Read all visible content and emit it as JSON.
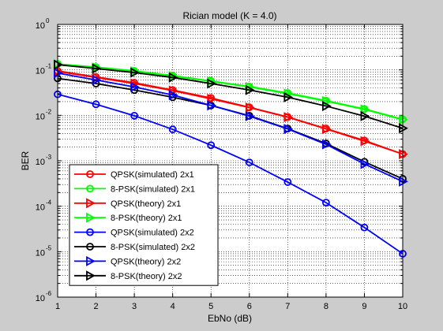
{
  "chart_data": {
    "type": "line",
    "title": "Rician model (K = 4.0)",
    "xlabel": "EbNo (dB)",
    "ylabel": "BER",
    "y_scale": "log",
    "xlim": [
      1,
      10
    ],
    "ylim": [
      1e-06,
      1
    ],
    "x_ticks": [
      "1",
      "2",
      "3",
      "4",
      "5",
      "6",
      "7",
      "8",
      "9",
      "10"
    ],
    "y_ticks": [
      {
        "base": "10",
        "exp": "0"
      },
      {
        "base": "10",
        "exp": "-1"
      },
      {
        "base": "10",
        "exp": "-2"
      },
      {
        "base": "10",
        "exp": "-3"
      },
      {
        "base": "10",
        "exp": "-4"
      },
      {
        "base": "10",
        "exp": "-5"
      },
      {
        "base": "10",
        "exp": "-6"
      }
    ],
    "grid": "dotted, major and minor",
    "legend_position": "bottom-left",
    "x": [
      1,
      2,
      3,
      4,
      5,
      6,
      7,
      8,
      9,
      10
    ],
    "series": [
      {
        "name": "QPSK(simulated) 2x1",
        "color": "#ff0000",
        "marker": "circle",
        "values": [
          0.095,
          0.07,
          0.052,
          0.036,
          0.024,
          0.015,
          0.0092,
          0.0051,
          0.0028,
          0.0014
        ]
      },
      {
        "name": "8-PSK(simulated) 2x1",
        "color": "#00ff00",
        "marker": "circle",
        "values": [
          0.135,
          0.115,
          0.095,
          0.075,
          0.057,
          0.043,
          0.031,
          0.021,
          0.0138,
          0.0082
        ]
      },
      {
        "name": "QPSK(theory) 2x1",
        "color": "#ff0000",
        "marker": "triangle-right",
        "values": [
          0.092,
          0.068,
          0.05,
          0.035,
          0.023,
          0.0148,
          0.0091,
          0.005,
          0.0027,
          0.0014
        ]
      },
      {
        "name": "8-PSK(theory) 2x1",
        "color": "#00ff00",
        "marker": "triangle-right",
        "values": [
          0.132,
          0.113,
          0.093,
          0.073,
          0.056,
          0.042,
          0.03,
          0.0205,
          0.0135,
          0.008
        ]
      },
      {
        "name": "QPSK(simulated) 2x2",
        "color": "#0000ff",
        "marker": "circle",
        "values": [
          0.029,
          0.0175,
          0.0098,
          0.0049,
          0.0022,
          0.00092,
          0.00034,
          0.00012,
          3.4e-05,
          9e-06
        ]
      },
      {
        "name": "8-PSK(simulated) 2x2",
        "color": "#000000",
        "marker": "circle",
        "values": [
          0.065,
          0.05,
          0.036,
          0.025,
          0.0165,
          0.0098,
          0.0051,
          0.0024,
          0.00095,
          0.0004
        ]
      },
      {
        "name": "QPSK(theory) 2x2",
        "color": "#0000ff",
        "marker": "triangle-right",
        "values": [
          0.085,
          0.06,
          0.042,
          0.028,
          0.0165,
          0.0096,
          0.005,
          0.0023,
          0.00085,
          0.00035
        ]
      },
      {
        "name": "8-PSK(theory) 2x2",
        "color": "#000000",
        "marker": "triangle-right",
        "values": [
          0.13,
          0.107,
          0.087,
          0.068,
          0.05,
          0.036,
          0.025,
          0.016,
          0.0096,
          0.0052
        ]
      }
    ]
  }
}
